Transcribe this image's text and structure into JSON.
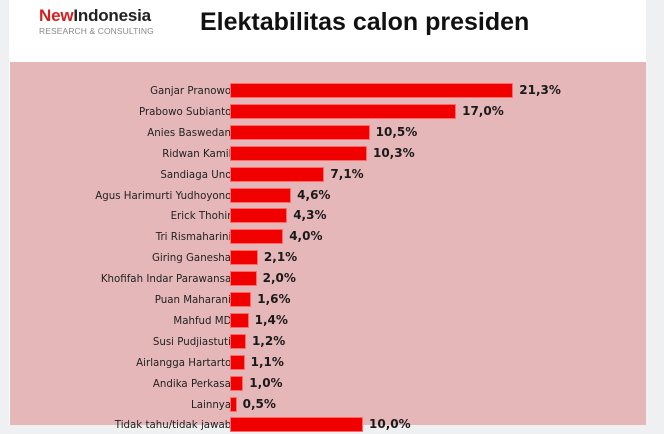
{
  "header": {
    "logo_new": "New",
    "logo_brand": "Indonesia",
    "logo_sub": "RESEARCH & CONSULTING",
    "title": "Elektabilitas calon presiden"
  },
  "colors": {
    "bar": "#f10000",
    "panel": "#e6b7b9",
    "logo_accent": "#d21f1f"
  },
  "chart_data": {
    "type": "bar",
    "orientation": "horizontal",
    "title": "Elektabilitas calon presiden",
    "xlabel": "",
    "ylabel": "",
    "unit": "%",
    "grid": false,
    "legend": null,
    "categories": [
      "Ganjar Pranowo",
      "Prabowo Subianto",
      "Anies Baswedan",
      "Ridwan Kamil",
      "Sandiaga Uno",
      "Agus Harimurti Yudhoyono",
      "Erick Thohir",
      "Tri Rismaharini",
      "Giring Ganesha",
      "Khofifah Indar Parawansa",
      "Puan Maharani",
      "Mahfud MD",
      "Susi Pudjiastuti",
      "Airlangga Hartarto",
      "Andika Perkasa",
      "Lainnya",
      "Tidak tahu/tidak jawab"
    ],
    "values": [
      21.3,
      17.0,
      10.5,
      10.3,
      7.1,
      4.6,
      4.3,
      4.0,
      2.1,
      2.0,
      1.6,
      1.4,
      1.2,
      1.1,
      1.0,
      0.5,
      10.0
    ],
    "labels": [
      "21,3%",
      "17,0%",
      "10,5%",
      "10,3%",
      "7,1%",
      "4,6%",
      "4,3%",
      "4,0%",
      "2,1%",
      "2,0%",
      "1,6%",
      "1,4%",
      "1,2%",
      "1,1%",
      "1,0%",
      "0,5%",
      "10,0%"
    ]
  }
}
